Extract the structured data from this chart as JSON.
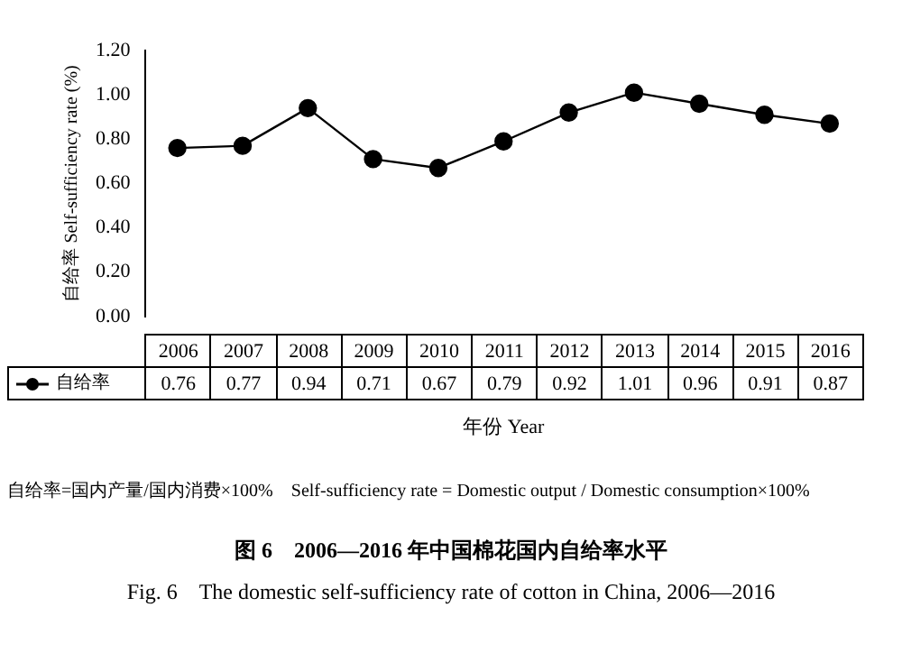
{
  "chart_data": {
    "type": "line",
    "ylabel": "自给率 Self-sufficiency rate (%)",
    "xlabel": "年份 Year",
    "categories": [
      "2006",
      "2007",
      "2008",
      "2009",
      "2010",
      "2011",
      "2012",
      "2013",
      "2014",
      "2015",
      "2016"
    ],
    "series": [
      {
        "name": "自给率",
        "color": "#000000",
        "values": [
          0.76,
          0.77,
          0.94,
          0.71,
          0.67,
          0.79,
          0.92,
          1.01,
          0.96,
          0.91,
          0.87
        ]
      }
    ],
    "ylim": [
      0,
      1.2
    ],
    "yticks": [
      {
        "value": 0,
        "label": "0.00"
      },
      {
        "value": 0.2,
        "label": "0.20"
      },
      {
        "value": 0.4,
        "label": "0.40"
      },
      {
        "value": 0.6,
        "label": "0.60"
      },
      {
        "value": 0.8,
        "label": "0.80"
      },
      {
        "value": 1,
        "label": "1.00"
      },
      {
        "value": 1.2,
        "label": "1.20"
      }
    ],
    "grid": false,
    "legend": "bottom",
    "marker": "circle",
    "line_style": "solid",
    "data_labels": true,
    "annotations": [
      "自给率=国内产量/国内消费×100%    Self-sufficiency rate = Domestic output / Domestic consumption×100%",
      "图 6　2006—2016 年中国棉花国内自给率水平",
      "Fig. 6　The domestic self-sufficiency rate of cotton in China, 2006—2016"
    ]
  }
}
